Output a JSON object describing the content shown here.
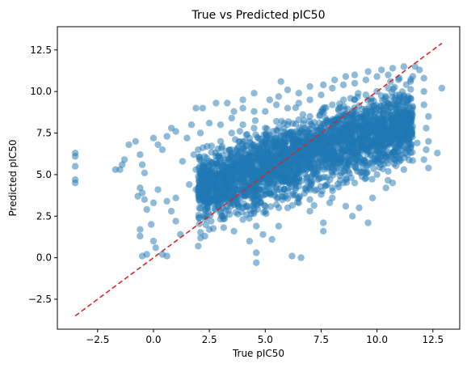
{
  "chart_data": {
    "type": "scatter",
    "title": "True vs Predicted pIC50",
    "xlabel": "True pIC50",
    "ylabel": "Predicted pIC50",
    "xlim": [
      -4.3,
      13.7
    ],
    "ylim": [
      -4.3,
      13.9
    ],
    "x_ticks": [
      "−2.5",
      "0.0",
      "2.5",
      "5.0",
      "7.5",
      "10.0",
      "12.5"
    ],
    "y_ticks": [
      "−2.5",
      "0.0",
      "2.5",
      "5.0",
      "7.5",
      "10.0",
      "12.5"
    ],
    "x_tick_values": [
      -2.5,
      0,
      2.5,
      5,
      7.5,
      10,
      12.5
    ],
    "y_tick_values": [
      -2.5,
      0,
      2.5,
      5,
      7.5,
      10,
      12.5
    ],
    "grid": false,
    "point_color": "#1f77b4",
    "point_opacity": 0.5,
    "reference_line": {
      "style": "dashed",
      "color": "#d62728",
      "x": [
        -3.5,
        12.9
      ],
      "y": [
        -3.5,
        12.9
      ]
    },
    "series": [
      {
        "points": [
          [
            -3.5,
            6.3
          ],
          [
            -3.5,
            6.1
          ],
          [
            -3.5,
            5.5
          ],
          [
            -3.5,
            4.7
          ],
          [
            -3.5,
            4.5
          ],
          [
            -1.7,
            5.3
          ],
          [
            -1.5,
            5.3
          ],
          [
            -1.4,
            5.6
          ],
          [
            -1.3,
            5.9
          ],
          [
            -1.1,
            6.8
          ],
          [
            -0.8,
            7.0
          ],
          [
            -0.6,
            6.2
          ],
          [
            -0.5,
            5.6
          ],
          [
            -0.4,
            5.1
          ],
          [
            -0.6,
            4.2
          ],
          [
            -0.7,
            3.7
          ],
          [
            -0.5,
            3.9
          ],
          [
            -0.4,
            3.5
          ],
          [
            -0.3,
            2.9
          ],
          [
            -0.6,
            1.7
          ],
          [
            -0.6,
            1.3
          ],
          [
            -0.5,
            0.1
          ],
          [
            -0.3,
            0.2
          ],
          [
            -0.1,
            2.0
          ],
          [
            0.0,
            1.0
          ],
          [
            0.0,
            3.3
          ],
          [
            0.2,
            4.1
          ],
          [
            0.1,
            0.6
          ],
          [
            0.4,
            0.2
          ],
          [
            0.6,
            0.1
          ],
          [
            0.0,
            7.2
          ],
          [
            0.2,
            6.8
          ],
          [
            0.4,
            6.5
          ],
          [
            0.6,
            7.3
          ],
          [
            0.8,
            7.8
          ],
          [
            1.0,
            7.6
          ],
          [
            0.8,
            2.8
          ],
          [
            1.0,
            2.2
          ],
          [
            1.2,
            1.4
          ],
          [
            1.0,
            3.6
          ],
          [
            0.6,
            3.4
          ],
          [
            1.5,
            7.2
          ],
          [
            1.7,
            8.0
          ],
          [
            1.9,
            9.0
          ],
          [
            2.2,
            9.0
          ],
          [
            2.0,
            0.7
          ],
          [
            2.3,
            1.3
          ],
          [
            2.5,
            1.7
          ],
          [
            1.6,
            4.4
          ],
          [
            1.8,
            6.2
          ],
          [
            1.3,
            5.8
          ],
          [
            2.8,
            9.3
          ],
          [
            3.3,
            9.3
          ],
          [
            3.6,
            8.8
          ],
          [
            4.0,
            9.5
          ],
          [
            4.5,
            9.9
          ],
          [
            5.2,
            9.5
          ],
          [
            5.6,
            9.7
          ],
          [
            6.0,
            10.1
          ],
          [
            6.5,
            9.9
          ],
          [
            7.0,
            10.3
          ],
          [
            5.7,
            10.6
          ],
          [
            7.6,
            10.4
          ],
          [
            8.1,
            10.7
          ],
          [
            8.6,
            10.9
          ],
          [
            9.0,
            11.0
          ],
          [
            9.6,
            11.2
          ],
          [
            10.2,
            11.3
          ],
          [
            10.7,
            11.4
          ],
          [
            11.2,
            11.5
          ],
          [
            11.7,
            11.5
          ],
          [
            11.9,
            11.3
          ],
          [
            11.6,
            10.9
          ],
          [
            12.1,
            10.8
          ],
          [
            12.1,
            10.0
          ],
          [
            12.1,
            9.2
          ],
          [
            12.3,
            8.5
          ],
          [
            12.2,
            7.8
          ],
          [
            12.3,
            7.0
          ],
          [
            12.2,
            6.5
          ],
          [
            12.7,
            6.3
          ],
          [
            12.3,
            5.4
          ],
          [
            12.1,
            5.9
          ],
          [
            12.9,
            10.2
          ],
          [
            11.6,
            7.9
          ],
          [
            11.8,
            6.9
          ],
          [
            11.2,
            5.3
          ],
          [
            10.7,
            4.5
          ],
          [
            10.4,
            4.2
          ],
          [
            9.8,
            3.6
          ],
          [
            9.2,
            3.0
          ],
          [
            9.6,
            2.1
          ],
          [
            8.9,
            2.5
          ],
          [
            8.6,
            3.1
          ],
          [
            8.0,
            3.6
          ],
          [
            7.6,
            2.1
          ],
          [
            7.6,
            1.6
          ],
          [
            7.0,
            2.8
          ],
          [
            7.3,
            4.1
          ],
          [
            6.6,
            0.0
          ],
          [
            6.2,
            0.1
          ],
          [
            5.6,
            1.9
          ],
          [
            5.3,
            1.1
          ],
          [
            4.9,
            1.4
          ],
          [
            4.6,
            1.9
          ],
          [
            4.6,
            0.3
          ],
          [
            4.6,
            -0.3
          ],
          [
            4.3,
            1.0
          ],
          [
            4.0,
            2.3
          ],
          [
            3.6,
            1.6
          ],
          [
            3.4,
            2.6
          ],
          [
            3.1,
            3.0
          ],
          [
            2.7,
            3.5
          ],
          [
            2.4,
            2.5
          ],
          [
            2.2,
            3.5
          ],
          [
            1.9,
            4.1
          ],
          [
            1.9,
            5.3
          ],
          [
            2.0,
            6.5
          ],
          [
            2.1,
            7.5
          ],
          [
            2.4,
            6.7
          ],
          [
            2.5,
            8.1
          ],
          [
            3.0,
            3.2
          ],
          [
            3.0,
            5.0
          ],
          [
            3.0,
            6.0
          ],
          [
            3.0,
            7.0
          ],
          [
            3.0,
            8.0
          ],
          [
            3.5,
            3.5
          ],
          [
            3.5,
            4.5
          ],
          [
            3.5,
            5.5
          ],
          [
            3.5,
            6.5
          ],
          [
            3.5,
            7.5
          ],
          [
            3.5,
            8.4
          ],
          [
            4.0,
            3.0
          ],
          [
            4.0,
            4.0
          ],
          [
            4.0,
            5.0
          ],
          [
            4.0,
            6.0
          ],
          [
            4.0,
            7.0
          ],
          [
            4.0,
            8.0
          ],
          [
            4.0,
            9.0
          ],
          [
            4.5,
            2.8
          ],
          [
            4.5,
            3.8
          ],
          [
            4.5,
            4.8
          ],
          [
            4.5,
            5.8
          ],
          [
            4.5,
            6.8
          ],
          [
            4.5,
            7.8
          ],
          [
            4.5,
            8.8
          ],
          [
            5.0,
            2.8
          ],
          [
            5.0,
            3.8
          ],
          [
            5.0,
            4.8
          ],
          [
            5.0,
            5.8
          ],
          [
            5.0,
            6.8
          ],
          [
            5.0,
            7.8
          ],
          [
            5.0,
            8.8
          ],
          [
            5.5,
            3.2
          ],
          [
            5.5,
            4.2
          ],
          [
            5.5,
            5.2
          ],
          [
            5.5,
            6.2
          ],
          [
            5.5,
            7.2
          ],
          [
            5.5,
            8.2
          ],
          [
            5.5,
            9.2
          ],
          [
            6.0,
            3.0
          ],
          [
            6.0,
            4.0
          ],
          [
            6.0,
            5.0
          ],
          [
            6.0,
            6.0
          ],
          [
            6.0,
            7.0
          ],
          [
            6.0,
            8.0
          ],
          [
            6.0,
            9.0
          ],
          [
            6.5,
            3.3
          ],
          [
            6.5,
            4.3
          ],
          [
            6.5,
            5.3
          ],
          [
            6.5,
            6.3
          ],
          [
            6.5,
            7.3
          ],
          [
            6.5,
            8.3
          ],
          [
            6.5,
            9.3
          ],
          [
            7.0,
            3.5
          ],
          [
            7.0,
            4.5
          ],
          [
            7.0,
            5.5
          ],
          [
            7.0,
            6.5
          ],
          [
            7.0,
            7.5
          ],
          [
            7.0,
            8.5
          ],
          [
            7.0,
            9.5
          ],
          [
            7.5,
            3.8
          ],
          [
            7.5,
            4.8
          ],
          [
            7.5,
            5.8
          ],
          [
            7.5,
            6.8
          ],
          [
            7.5,
            7.8
          ],
          [
            7.5,
            8.8
          ],
          [
            7.5,
            9.8
          ],
          [
            8.0,
            4.2
          ],
          [
            8.0,
            5.2
          ],
          [
            8.0,
            6.2
          ],
          [
            8.0,
            7.2
          ],
          [
            8.0,
            8.2
          ],
          [
            8.0,
            9.2
          ],
          [
            8.0,
            10.2
          ],
          [
            8.5,
            4.5
          ],
          [
            8.5,
            5.5
          ],
          [
            8.5,
            6.5
          ],
          [
            8.5,
            7.5
          ],
          [
            8.5,
            8.5
          ],
          [
            8.5,
            9.5
          ],
          [
            8.5,
            10.4
          ],
          [
            9.0,
            4.5
          ],
          [
            9.0,
            5.5
          ],
          [
            9.0,
            6.5
          ],
          [
            9.0,
            7.5
          ],
          [
            9.0,
            8.5
          ],
          [
            9.0,
            9.5
          ],
          [
            9.0,
            10.5
          ],
          [
            9.5,
            4.8
          ],
          [
            9.5,
            5.8
          ],
          [
            9.5,
            6.8
          ],
          [
            9.5,
            7.8
          ],
          [
            9.5,
            8.8
          ],
          [
            9.5,
            9.8
          ],
          [
            9.5,
            10.7
          ],
          [
            10.0,
            5.0
          ],
          [
            10.0,
            6.0
          ],
          [
            10.0,
            7.0
          ],
          [
            10.0,
            8.0
          ],
          [
            10.0,
            9.0
          ],
          [
            10.0,
            10.0
          ],
          [
            10.0,
            10.9
          ],
          [
            10.5,
            5.2
          ],
          [
            10.5,
            6.2
          ],
          [
            10.5,
            7.2
          ],
          [
            10.5,
            8.2
          ],
          [
            10.5,
            9.2
          ],
          [
            10.5,
            10.2
          ],
          [
            10.5,
            11.0
          ],
          [
            11.0,
            5.8
          ],
          [
            11.0,
            6.8
          ],
          [
            11.0,
            7.8
          ],
          [
            11.0,
            8.8
          ],
          [
            11.0,
            9.8
          ],
          [
            11.0,
            10.8
          ],
          [
            11.5,
            6.6
          ],
          [
            11.5,
            7.6
          ],
          [
            11.5,
            8.6
          ],
          [
            11.5,
            9.6
          ],
          [
            11.5,
            10.6
          ]
        ]
      }
    ]
  }
}
